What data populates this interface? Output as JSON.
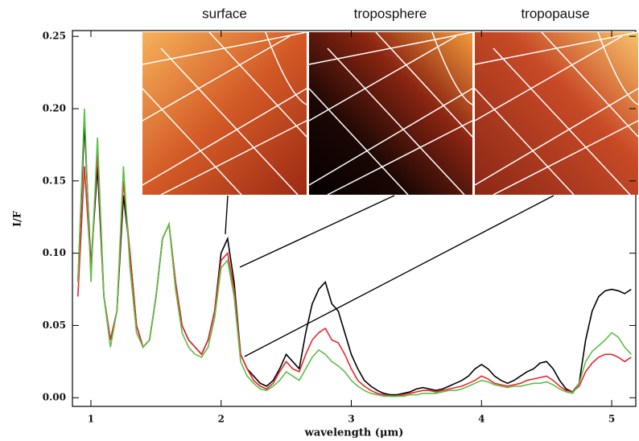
{
  "chart_data": {
    "type": "line",
    "xlabel": "wavelength (μm)",
    "ylabel": "I/F",
    "panel_titles": [
      "surface",
      "troposphere",
      "tropopause"
    ],
    "x": [
      0.9,
      0.95,
      1.0,
      1.05,
      1.1,
      1.15,
      1.2,
      1.25,
      1.3,
      1.35,
      1.4,
      1.45,
      1.5,
      1.55,
      1.6,
      1.65,
      1.7,
      1.75,
      1.8,
      1.85,
      1.9,
      1.95,
      2.0,
      2.05,
      2.1,
      2.15,
      2.2,
      2.25,
      2.3,
      2.35,
      2.4,
      2.45,
      2.5,
      2.55,
      2.6,
      2.65,
      2.7,
      2.75,
      2.8,
      2.85,
      2.9,
      2.95,
      3.0,
      3.05,
      3.1,
      3.15,
      3.2,
      3.25,
      3.3,
      3.35,
      3.4,
      3.45,
      3.5,
      3.55,
      3.6,
      3.65,
      3.7,
      3.75,
      3.8,
      3.85,
      3.9,
      3.95,
      4.0,
      4.05,
      4.1,
      4.15,
      4.2,
      4.25,
      4.3,
      4.35,
      4.4,
      4.45,
      4.5,
      4.55,
      4.6,
      4.65,
      4.7,
      4.75,
      4.8,
      4.85,
      4.9,
      4.95,
      5.0,
      5.05,
      5.1,
      5.15
    ],
    "series": [
      {
        "color": "#000000",
        "values": [
          0.08,
          0.19,
          0.09,
          0.16,
          0.07,
          0.04,
          0.06,
          0.14,
          0.1,
          0.05,
          0.035,
          0.04,
          0.07,
          0.11,
          0.12,
          0.08,
          0.05,
          0.04,
          0.035,
          0.03,
          0.04,
          0.06,
          0.1,
          0.11,
          0.08,
          0.03,
          0.02,
          0.015,
          0.01,
          0.008,
          0.012,
          0.02,
          0.03,
          0.025,
          0.02,
          0.045,
          0.065,
          0.075,
          0.08,
          0.065,
          0.06,
          0.045,
          0.03,
          0.02,
          0.012,
          0.008,
          0.005,
          0.003,
          0.002,
          0.002,
          0.003,
          0.004,
          0.006,
          0.007,
          0.006,
          0.005,
          0.006,
          0.008,
          0.01,
          0.012,
          0.015,
          0.02,
          0.023,
          0.02,
          0.015,
          0.012,
          0.01,
          0.012,
          0.015,
          0.018,
          0.02,
          0.024,
          0.025,
          0.02,
          0.012,
          0.006,
          0.004,
          0.01,
          0.04,
          0.06,
          0.07,
          0.074,
          0.075,
          0.074,
          0.072,
          0.075
        ]
      },
      {
        "color": "#e8262b",
        "values": [
          0.07,
          0.16,
          0.09,
          0.17,
          0.07,
          0.04,
          0.06,
          0.15,
          0.1,
          0.05,
          0.035,
          0.04,
          0.07,
          0.11,
          0.12,
          0.08,
          0.05,
          0.04,
          0.035,
          0.03,
          0.04,
          0.06,
          0.095,
          0.1,
          0.075,
          0.03,
          0.02,
          0.012,
          0.008,
          0.006,
          0.01,
          0.018,
          0.025,
          0.02,
          0.018,
          0.03,
          0.04,
          0.045,
          0.048,
          0.04,
          0.038,
          0.03,
          0.02,
          0.012,
          0.008,
          0.005,
          0.003,
          0.002,
          0.001,
          0.001,
          0.002,
          0.003,
          0.004,
          0.005,
          0.005,
          0.004,
          0.005,
          0.006,
          0.007,
          0.008,
          0.01,
          0.012,
          0.015,
          0.013,
          0.01,
          0.009,
          0.008,
          0.009,
          0.01,
          0.012,
          0.013,
          0.014,
          0.015,
          0.012,
          0.008,
          0.005,
          0.004,
          0.008,
          0.018,
          0.024,
          0.028,
          0.03,
          0.03,
          0.028,
          0.025,
          0.028
        ]
      },
      {
        "color": "#5cbf45",
        "values": [
          0.08,
          0.2,
          0.08,
          0.18,
          0.07,
          0.035,
          0.06,
          0.16,
          0.09,
          0.045,
          0.035,
          0.04,
          0.07,
          0.11,
          0.12,
          0.075,
          0.045,
          0.035,
          0.03,
          0.028,
          0.035,
          0.055,
          0.09,
          0.095,
          0.07,
          0.025,
          0.015,
          0.01,
          0.006,
          0.005,
          0.008,
          0.012,
          0.018,
          0.015,
          0.012,
          0.02,
          0.028,
          0.033,
          0.03,
          0.025,
          0.022,
          0.018,
          0.012,
          0.008,
          0.005,
          0.003,
          0.002,
          0.001,
          0.001,
          0.001,
          0.001,
          0.002,
          0.002,
          0.003,
          0.003,
          0.003,
          0.004,
          0.005,
          0.005,
          0.006,
          0.008,
          0.01,
          0.012,
          0.011,
          0.009,
          0.008,
          0.007,
          0.008,
          0.008,
          0.009,
          0.01,
          0.01,
          0.011,
          0.009,
          0.006,
          0.004,
          0.003,
          0.01,
          0.025,
          0.032,
          0.036,
          0.04,
          0.045,
          0.042,
          0.035,
          0.03
        ]
      }
    ],
    "xlim": [
      0.858,
      5.185
    ],
    "ylim": [
      -0.006,
      0.254
    ],
    "xticks": [
      1,
      2,
      3,
      4,
      5
    ],
    "yticks": [
      {
        "value": 0,
        "label": "0.00"
      },
      {
        "value": 0.05,
        "label": "0.05"
      },
      {
        "value": 0.1,
        "label": "0.10"
      },
      {
        "value": 0.15,
        "label": "0.15"
      },
      {
        "value": 0.2,
        "label": "0.20"
      },
      {
        "value": 0.25,
        "label": "0.25"
      }
    ]
  }
}
